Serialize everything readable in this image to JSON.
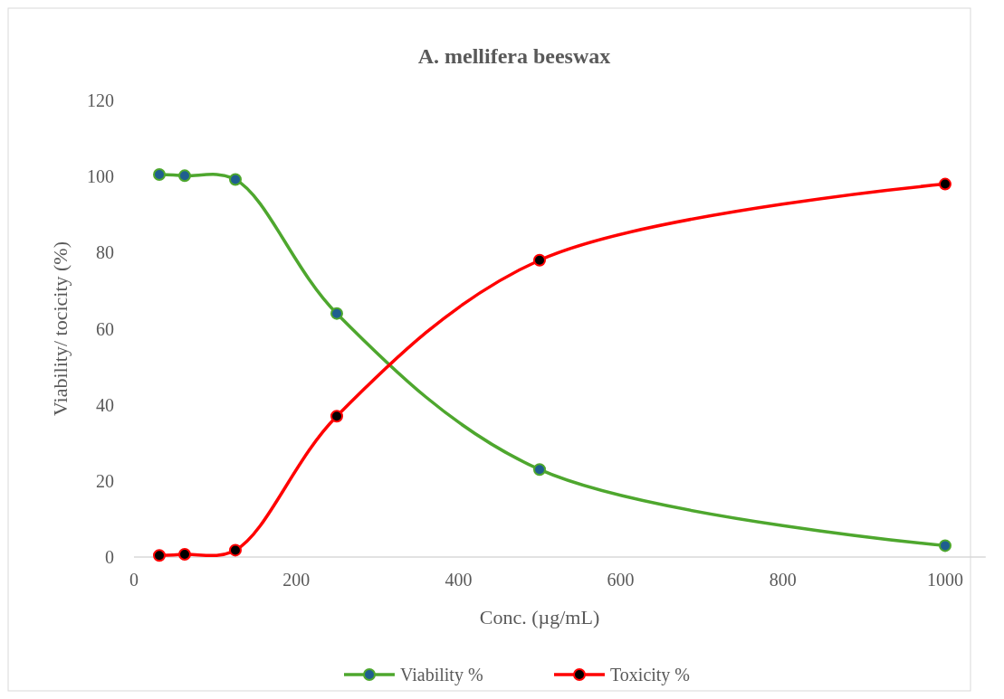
{
  "chart_data": {
    "type": "line",
    "title": "A. mellifera beeswax",
    "xlabel": "Conc. (µg/mL)",
    "ylabel": "Viability/ tocicity (%)",
    "x": [
      31.25,
      62.5,
      125,
      250,
      500,
      1000
    ],
    "series": [
      {
        "name": "Viability %",
        "color": "#4ea72e",
        "values": [
          100.5,
          100.2,
          99.2,
          64,
          23,
          3
        ]
      },
      {
        "name": "Toxicity %",
        "color": "#ff0000",
        "values": [
          0.4,
          0.7,
          1.8,
          37,
          78,
          98
        ]
      }
    ],
    "xlim": [
      0,
      1050
    ],
    "xticks": [
      0,
      200,
      400,
      600,
      800,
      1000
    ],
    "ylim": [
      0,
      120
    ],
    "yticks": [
      0,
      20,
      40,
      60,
      80,
      100,
      120
    ],
    "grid": false,
    "legend": "bottom",
    "marker": "circle",
    "line_style": "solid"
  }
}
